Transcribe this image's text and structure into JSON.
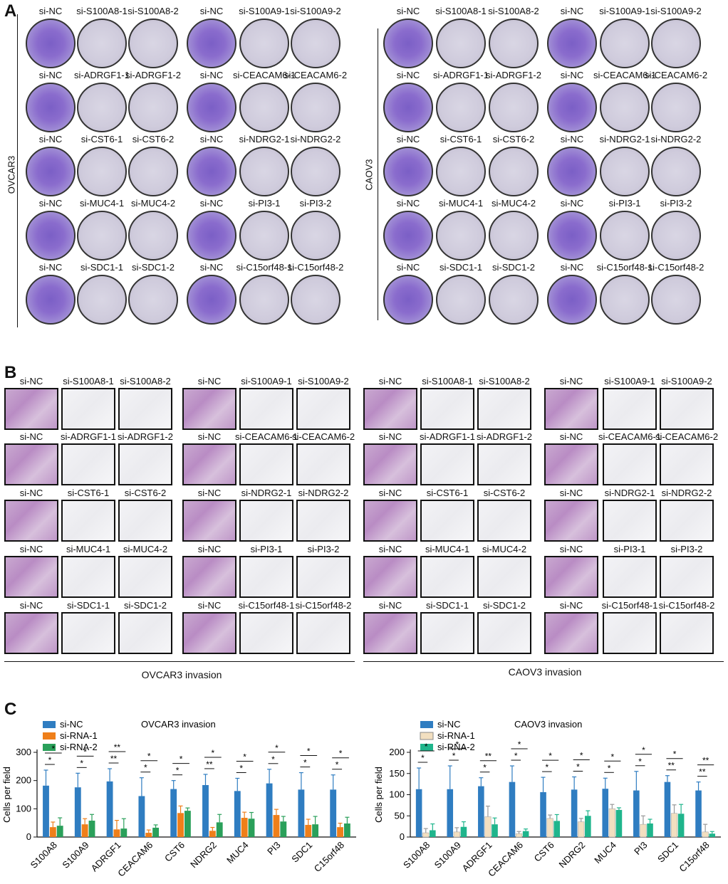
{
  "panels": {
    "a": "A",
    "b": "B",
    "c": "C"
  },
  "panel_a": {
    "left_cell_line": "OVCAR3",
    "right_cell_line": "CAOV3",
    "rows_left": [
      [
        "si-NC",
        "si-S100A8-1",
        "si-S100A8-2",
        "si-NC",
        "si-S100A9-1",
        "si-S100A9-2"
      ],
      [
        "si-NC",
        "si-ADRGF1-1",
        "si-ADRGF1-2",
        "si-NC",
        "si-CEACAM6-1",
        "si-CEACAM6-2"
      ],
      [
        "si-NC",
        "si-CST6-1",
        "si-CST6-2",
        "si-NC",
        "si-NDRG2-1",
        "si-NDRG2-2"
      ],
      [
        "si-NC",
        "si-MUC4-1",
        "si-MUC4-2",
        "si-NC",
        "si-PI3-1",
        "si-PI3-2"
      ],
      [
        "si-NC",
        "si-SDC1-1",
        "si-SDC1-2",
        "si-NC",
        "si-C15orf48-1",
        "si-C15orf48-2"
      ]
    ],
    "rows_right": [
      [
        "si-NC",
        "si-S100A8-1",
        "si-S100A8-2",
        "si-NC",
        "si-S100A9-1",
        "si-S100A9-2"
      ],
      [
        "si-NC",
        "si-ADRGF1-1",
        "si-ADRGF1-2",
        "si-NC",
        "si-CEACAM6-1",
        "si-CEACAM6-2"
      ],
      [
        "si-NC",
        "si-CST6-1",
        "si-CST6-2",
        "si-NC",
        "si-NDRG2-1",
        "si-NDRG2-2"
      ],
      [
        "si-NC",
        "si-MUC4-1",
        "si-MUC4-2",
        "si-NC",
        "si-PI3-1",
        "si-PI3-2"
      ],
      [
        "si-NC",
        "si-SDC1-1",
        "si-SDC1-2",
        "si-NC",
        "si-C15orf48-1",
        "si-C15orf48-2"
      ]
    ]
  },
  "panel_b": {
    "left_caption": "OVCAR3 invasion",
    "right_caption": "CAOV3 invasion",
    "rows_left": [
      [
        "si-NC",
        "si-S100A8-1",
        "si-S100A8-2",
        "si-NC",
        "si-S100A9-1",
        "si-S100A9-2"
      ],
      [
        "si-NC",
        "si-ADRGF1-1",
        "si-ADRGF1-2",
        "si-NC",
        "si-CEACAM6-1",
        "si-CEACAM6-2"
      ],
      [
        "si-NC",
        "si-CST6-1",
        "si-CST6-2",
        "si-NC",
        "si-NDRG2-1",
        "si-NDRG2-2"
      ],
      [
        "si-NC",
        "si-MUC4-1",
        "si-MUC4-2",
        "si-NC",
        "si-PI3-1",
        "si-PI3-2"
      ],
      [
        "si-NC",
        "si-SDC1-1",
        "si-SDC1-2",
        "si-NC",
        "si-C15orf48-1",
        "si-C15orf48-2"
      ]
    ],
    "rows_right": [
      [
        "si-NC",
        "si-S100A8-1",
        "si-S100A8-2",
        "si-NC",
        "si-S100A9-1",
        "si-S100A9-2"
      ],
      [
        "si-NC",
        "si-ADRGF1-1",
        "si-ADRGF1-2",
        "si-NC",
        "si-CEACAM6-1",
        "si-CEACAM6-2"
      ],
      [
        "si-NC",
        "si-CST6-1",
        "si-CST6-2",
        "si-NC",
        "si-NDRG2-1",
        "si-NDRG2-2"
      ],
      [
        "si-NC",
        "si-MUC4-1",
        "si-MUC4-2",
        "si-NC",
        "si-PI3-1",
        "si-PI3-2"
      ],
      [
        "si-NC",
        "si-SDC1-1",
        "si-SDC1-2",
        "si-NC",
        "si-C15orf48-1",
        "si-C15orf48-2"
      ]
    ]
  },
  "chart_data": [
    {
      "type": "bar",
      "title": "OVCAR3 invasion",
      "xlabel": "",
      "ylabel": "Cells per field",
      "ylim": [
        0,
        300
      ],
      "yticks": [
        0,
        100,
        200,
        300
      ],
      "categories": [
        "S100A8",
        "S100A9",
        "ADRGF1",
        "CEACAM6",
        "CST6",
        "NDRG2",
        "MUC4",
        "PI3",
        "SDC1",
        "C15orf48"
      ],
      "legend_position": "top-left",
      "series": [
        {
          "name": "si-NC",
          "color": "#2f7dc1",
          "values": [
            182,
            176,
            197,
            145,
            170,
            184,
            163,
            190,
            168,
            168
          ],
          "errors": [
            55,
            50,
            45,
            65,
            30,
            38,
            45,
            50,
            60,
            52
          ]
        },
        {
          "name": "si-RNA-1",
          "color": "#ef7f1a",
          "values": [
            35,
            45,
            27,
            15,
            85,
            22,
            68,
            78,
            43,
            35
          ],
          "errors": [
            18,
            20,
            32,
            10,
            25,
            12,
            20,
            20,
            20,
            14
          ]
        },
        {
          "name": "si-RNA-2",
          "color": "#2aa05a",
          "values": [
            40,
            58,
            30,
            33,
            93,
            52,
            65,
            55,
            45,
            48
          ],
          "errors": [
            28,
            22,
            35,
            10,
            10,
            28,
            22,
            18,
            28,
            22
          ]
        }
      ],
      "significance": [
        [
          "*",
          "*"
        ],
        [
          "*",
          "*"
        ],
        [
          "**",
          "**"
        ],
        [
          "*",
          "*"
        ],
        [
          "*",
          "*"
        ],
        [
          "**",
          "*"
        ],
        [
          "*",
          "*"
        ],
        [
          "*",
          "*"
        ],
        [
          "*",
          "*"
        ],
        [
          "*",
          "*"
        ]
      ]
    },
    {
      "type": "bar",
      "title": "CAOV3 invasion",
      "xlabel": "",
      "ylabel": "Cells per field",
      "ylim": [
        0,
        200
      ],
      "yticks": [
        0,
        50,
        100,
        150,
        200
      ],
      "categories": [
        "S100A8",
        "S100A9",
        "ADRGF1",
        "CEACAM6",
        "CST6",
        "NDRG2",
        "MUC4",
        "PI3",
        "SDC1",
        "C15orf48"
      ],
      "legend_position": "top-left",
      "series": [
        {
          "name": "si-NC",
          "color": "#2f7dc1",
          "values": [
            113,
            113,
            120,
            130,
            106,
            112,
            114,
            110,
            130,
            110
          ],
          "errors": [
            50,
            55,
            20,
            38,
            35,
            30,
            25,
            45,
            15,
            20
          ]
        },
        {
          "name": "si-RNA-1",
          "color": "#f2dfc0",
          "values": [
            10,
            12,
            48,
            8,
            44,
            36,
            67,
            30,
            56,
            12
          ],
          "errors": [
            10,
            10,
            25,
            5,
            8,
            8,
            10,
            20,
            20,
            18
          ]
        },
        {
          "name": "si-RNA-2",
          "color": "#1fb58c",
          "values": [
            16,
            24,
            30,
            14,
            38,
            50,
            64,
            32,
            55,
            8
          ],
          "errors": [
            15,
            12,
            15,
            5,
            15,
            12,
            5,
            10,
            22,
            5
          ]
        }
      ],
      "significance": [
        [
          "*",
          "*"
        ],
        [
          "*",
          "*"
        ],
        [
          "*",
          "**"
        ],
        [
          "*",
          "*"
        ],
        [
          "*",
          "*"
        ],
        [
          "*",
          "*"
        ],
        [
          "*",
          "*"
        ],
        [
          "*",
          "*"
        ],
        [
          "**",
          "*"
        ],
        [
          "**",
          "**"
        ]
      ]
    }
  ]
}
